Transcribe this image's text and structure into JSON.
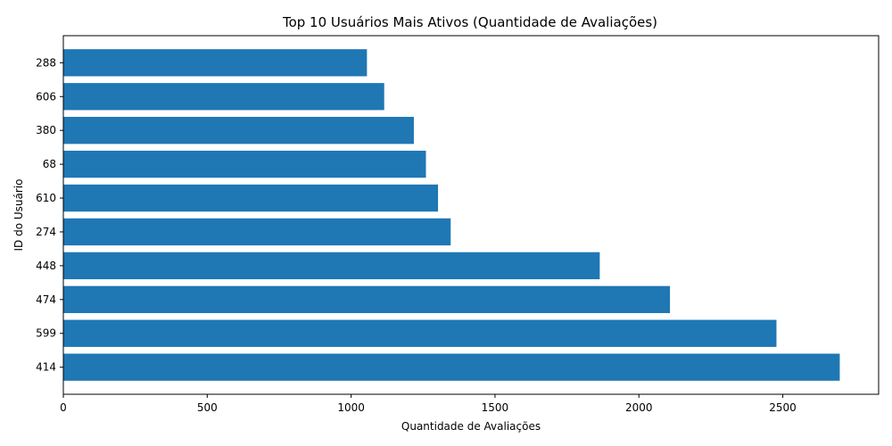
{
  "chart_data": {
    "type": "bar",
    "orientation": "horizontal",
    "title": "Top 10 Usuários Mais Ativos (Quantidade de Avaliações)",
    "xlabel": "Quantidade de Avaliações",
    "ylabel": "ID do Usuário",
    "categories": [
      "414",
      "599",
      "474",
      "448",
      "274",
      "610",
      "68",
      "380",
      "606",
      "288"
    ],
    "values": [
      2698,
      2478,
      2108,
      1864,
      1346,
      1302,
      1260,
      1218,
      1115,
      1055
    ],
    "xlim": [
      0,
      2833
    ],
    "xticks": [
      0,
      500,
      1000,
      1500,
      2000,
      2500
    ],
    "bar_color": "#1f77b4",
    "grid": false
  }
}
